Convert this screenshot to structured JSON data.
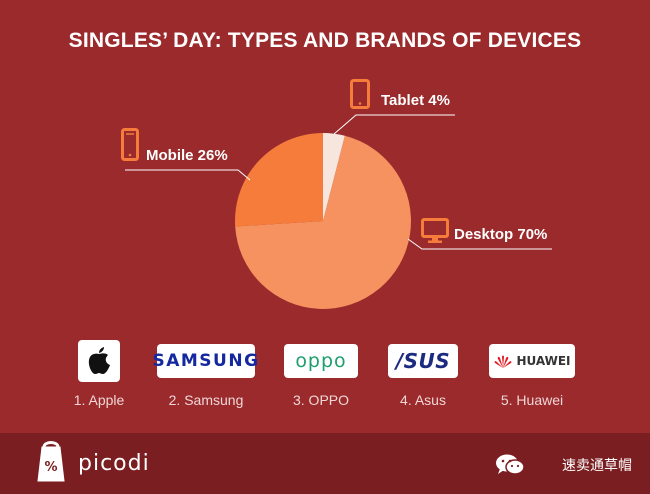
{
  "header": {
    "title": "SINGLES’ DAY: TYPES AND BRANDS OF DEVICES"
  },
  "chart_data": {
    "type": "pie",
    "title": "SINGLES’ DAY: TYPES AND BRANDS OF DEVICES",
    "slices": [
      {
        "label": "Tablet 4%",
        "name": "Tablet",
        "value": 4,
        "color": "#f7e6de",
        "icon": "tablet-icon"
      },
      {
        "label": "Desktop 70%",
        "name": "Desktop",
        "value": 70,
        "color": "#f5925f",
        "icon": "desktop-icon"
      },
      {
        "label": "Mobile 26%",
        "name": "Mobile",
        "value": 26,
        "color": "#f57c3a",
        "icon": "mobile-icon"
      }
    ]
  },
  "brands": [
    {
      "rank_label": "1. Apple",
      "logo_icon": "apple-logo"
    },
    {
      "rank_label": "2. Samsung",
      "logo_text": "SAMSUNG",
      "logo_color": "#1428a0"
    },
    {
      "rank_label": "3. OPPO",
      "logo_text": "oppo",
      "logo_color": "#1d9f6e"
    },
    {
      "rank_label": "4. Asus",
      "logo_text": "/SUS",
      "logo_color": "#1b2b80"
    },
    {
      "rank_label": "5. Huawei",
      "logo_text": "HUAWEI",
      "logo_color": "#333333"
    }
  ],
  "footer": {
    "brand": "picodi",
    "wechat_name": "速卖通草帽"
  },
  "colors": {
    "background": "#9a2a2c",
    "footer": "#7a1e21",
    "icon_orange": "#f57c3a"
  }
}
